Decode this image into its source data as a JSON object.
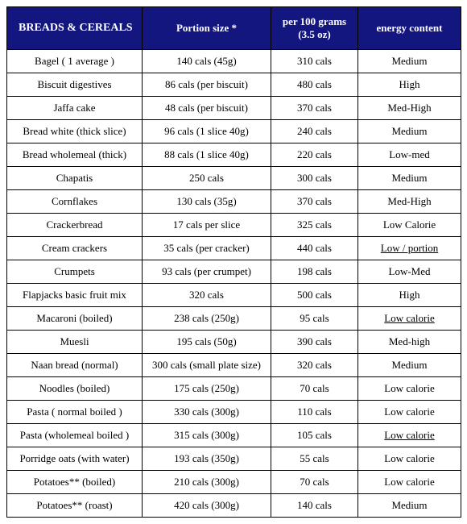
{
  "table": {
    "headers": {
      "food": "BREADS & CEREALS",
      "portion": "Portion size *",
      "per100": "per 100 grams (3.5 oz)",
      "energy": "energy content"
    },
    "rows": [
      {
        "food": "Bagel ( 1 average )",
        "portion": "140 cals (45g)",
        "per100": "310 cals",
        "energy": "Medium",
        "underline": false
      },
      {
        "food": "Biscuit digestives",
        "portion": "86 cals (per biscuit)",
        "per100": "480 cals",
        "energy": "High",
        "underline": false
      },
      {
        "food": "Jaffa cake",
        "portion": "48 cals (per biscuit)",
        "per100": "370 cals",
        "energy": "Med-High",
        "underline": false
      },
      {
        "food": "Bread white (thick slice)",
        "portion": "96  cals (1 slice 40g)",
        "per100": "240 cals",
        "energy": "Medium",
        "underline": false
      },
      {
        "food": "Bread wholemeal (thick)",
        "portion": "88  cals (1 slice 40g)",
        "per100": "220 cals",
        "energy": "Low-med",
        "underline": false
      },
      {
        "food": "Chapatis",
        "portion": "250 cals",
        "per100": "300 cals",
        "energy": "Medium",
        "underline": false
      },
      {
        "food": "Cornflakes",
        "portion": "130  cals (35g)",
        "per100": "370 cals",
        "energy": "Med-High",
        "underline": false
      },
      {
        "food": "Crackerbread",
        "portion": "17 cals per slice",
        "per100": "325 cals",
        "energy": "Low Calorie",
        "underline": false
      },
      {
        "food": "Cream crackers",
        "portion": "35 cals (per cracker)",
        "per100": "440 cals",
        "energy": "Low / portion",
        "underline": true
      },
      {
        "food": "Crumpets",
        "portion": "93 cals (per crumpet)",
        "per100": "198 cals",
        "energy": "Low-Med",
        "underline": false
      },
      {
        "food": "Flapjacks basic fruit mix",
        "portion": "320 cals",
        "per100": "500 cals",
        "energy": "High",
        "underline": false
      },
      {
        "food": "Macaroni (boiled)",
        "portion": "238 cals (250g)",
        "per100": "95 cals",
        "energy": "Low calorie",
        "underline": true
      },
      {
        "food": "Muesli",
        "portion": "195  cals (50g)",
        "per100": "390 cals",
        "energy": "Med-high",
        "underline": false
      },
      {
        "food": "Naan bread (normal)",
        "portion": "300 cals (small plate size)",
        "per100": "320 cals",
        "energy": "Medium",
        "underline": false
      },
      {
        "food": "Noodles (boiled)",
        "portion": "175 cals (250g)",
        "per100": "70 cals",
        "energy": "Low calorie",
        "underline": false
      },
      {
        "food": "Pasta ( normal boiled )",
        "portion": "330 cals (300g)",
        "per100": "110 cals",
        "energy": "Low calorie",
        "underline": false
      },
      {
        "food": "Pasta (wholemeal boiled )",
        "portion": "315 cals (300g)",
        "per100": "105 cals",
        "energy": "Low calorie",
        "underline": true
      },
      {
        "food": "Porridge oats (with water)",
        "portion": "193 cals (350g)",
        "per100": "55 cals",
        "energy": "Low calorie",
        "underline": false
      },
      {
        "food": "Potatoes** (boiled)",
        "portion": "210 cals (300g)",
        "per100": "70 cals",
        "energy": "Low calorie",
        "underline": false
      },
      {
        "food": "Potatoes** (roast)",
        "portion": "420 cals (300g)",
        "per100": "140 cals",
        "energy": "Medium",
        "underline": false
      }
    ]
  }
}
